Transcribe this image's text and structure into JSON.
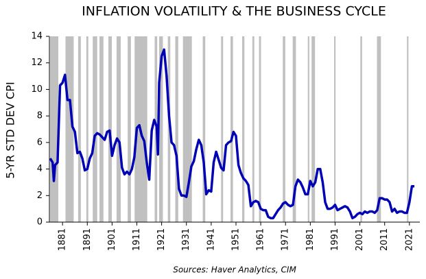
{
  "chart_data": {
    "type": "line",
    "title": "INFLATION VOLATILITY & THE BUSINESS CYCLE",
    "y_label": "5-YR STD DEV CPI",
    "source": "Sources: Haver Analytics, CIM",
    "x": [
      1876,
      1877,
      1877.5,
      1878,
      1879,
      1880,
      1881,
      1882,
      1883,
      1884,
      1885,
      1886,
      1887,
      1888,
      1889,
      1890,
      1891,
      1892,
      1893,
      1894,
      1895,
      1896,
      1897,
      1898,
      1899,
      1900,
      1901,
      1902,
      1903,
      1904,
      1905,
      1906,
      1907,
      1908,
      1909,
      1910,
      1911,
      1912,
      1913,
      1914,
      1915,
      1916,
      1917,
      1918,
      1919,
      1919.5,
      1920,
      1921,
      1922,
      1923,
      1924,
      1925,
      1926,
      1927,
      1928,
      1929,
      1930,
      1931,
      1932,
      1933,
      1934,
      1935,
      1936,
      1937,
      1938,
      1939,
      1940,
      1941,
      1942,
      1943,
      1944,
      1945,
      1946,
      1947,
      1948,
      1949,
      1950,
      1951,
      1952,
      1953,
      1954,
      1955,
      1956,
      1957,
      1958,
      1959,
      1960,
      1961,
      1962,
      1963,
      1964,
      1965,
      1966,
      1967,
      1968,
      1969,
      1970,
      1971,
      1972,
      1973,
      1974,
      1975,
      1976,
      1977,
      1978,
      1979,
      1980,
      1981,
      1982,
      1983,
      1984,
      1985,
      1986,
      1987,
      1988,
      1989,
      1990,
      1991,
      1992,
      1993,
      1994,
      1995,
      1996,
      1997,
      1998,
      1999,
      2000,
      2001,
      2002,
      2003,
      2004,
      2005,
      2006,
      2007,
      2008,
      2009,
      2010,
      2011,
      2012,
      2013,
      2014,
      2015,
      2016,
      2017,
      2018,
      2019,
      2020,
      2021,
      2022,
      2023
    ],
    "series": [
      {
        "name": "5-YR STD DEV CPI",
        "color": "#0000b4",
        "values": [
          4.8,
          4.5,
          3.1,
          4.3,
          4.5,
          10.3,
          10.5,
          11.1,
          9.2,
          9.2,
          7.2,
          6.8,
          5.2,
          5.3,
          4.8,
          3.9,
          4.0,
          4.8,
          5.2,
          6.5,
          6.7,
          6.6,
          6.4,
          6.2,
          6.8,
          6.9,
          5.0,
          5.8,
          6.3,
          6.0,
          4.1,
          3.6,
          3.8,
          3.6,
          4.0,
          4.9,
          7.1,
          7.3,
          6.5,
          6.1,
          4.5,
          3.2,
          6.9,
          7.7,
          7.2,
          5.1,
          10.5,
          12.5,
          13.0,
          11.0,
          8.0,
          6.0,
          5.8,
          5.0,
          2.5,
          2.0,
          2.0,
          1.9,
          3.0,
          4.2,
          4.6,
          5.5,
          6.2,
          5.8,
          4.5,
          2.1,
          2.4,
          2.3,
          4.5,
          5.3,
          4.7,
          4.1,
          3.9,
          5.8,
          6.0,
          6.1,
          6.8,
          6.5,
          4.3,
          3.7,
          3.3,
          3.1,
          2.8,
          1.2,
          1.5,
          1.6,
          1.5,
          1.0,
          0.9,
          0.9,
          0.4,
          0.3,
          0.3,
          0.6,
          0.9,
          1.1,
          1.4,
          1.5,
          1.3,
          1.2,
          1.3,
          2.7,
          3.2,
          3.0,
          2.6,
          2.1,
          2.1,
          3.1,
          2.7,
          3.0,
          4.0,
          4.0,
          3.0,
          1.5,
          1.0,
          1.0,
          1.1,
          1.3,
          0.9,
          1.0,
          1.1,
          1.2,
          1.1,
          0.8,
          0.3,
          0.4,
          0.6,
          0.7,
          0.6,
          0.8,
          0.7,
          0.8,
          0.8,
          0.7,
          0.9,
          1.8,
          1.8,
          1.7,
          1.7,
          1.5,
          0.8,
          1.0,
          0.7,
          0.8,
          0.8,
          0.7,
          0.7,
          1.5,
          2.7,
          2.7
        ]
      }
    ],
    "shaded_periods": [
      [
        1876,
        1879.3
      ],
      [
        1882.2,
        1885.5
      ],
      [
        1887.3,
        1888.4
      ],
      [
        1890.6,
        1891.4
      ],
      [
        1893.2,
        1895
      ],
      [
        1895.9,
        1897.5
      ],
      [
        1899.5,
        1900.9
      ],
      [
        1902.8,
        1904.5
      ],
      [
        1907.3,
        1908.6
      ],
      [
        1910.1,
        1915.2
      ],
      [
        1918.2,
        1919.2
      ],
      [
        1920,
        1921.5
      ],
      [
        1923.5,
        1924.5
      ],
      [
        1926.5,
        1927.7
      ],
      [
        1929.6,
        1933.2
      ],
      [
        1937.6,
        1938.6
      ],
      [
        1945,
        1945.8
      ],
      [
        1948.8,
        1949.8
      ],
      [
        1953.5,
        1954.4
      ],
      [
        1957.6,
        1958.4
      ],
      [
        1960.3,
        1961.1
      ],
      [
        1969.9,
        1970.9
      ],
      [
        1973.9,
        1975.2
      ],
      [
        1980,
        1980.6
      ],
      [
        1981.5,
        1982.9
      ],
      [
        1990.6,
        1991.2
      ],
      [
        2001.2,
        2001.9
      ],
      [
        2007.9,
        2009.5
      ],
      [
        2020,
        2020.6
      ]
    ],
    "shade_color": "#c0c0c0",
    "xlim": [
      1875.7,
      2025.2
    ],
    "xticks": [
      1881,
      1891,
      1901,
      1911,
      1921,
      1931,
      1941,
      1951,
      1961,
      1971,
      1981,
      1991,
      2001,
      2011,
      2021
    ],
    "ylim": [
      0,
      14
    ],
    "yticks": [
      0,
      2,
      4,
      6,
      8,
      10,
      12,
      14
    ],
    "grid": false
  }
}
